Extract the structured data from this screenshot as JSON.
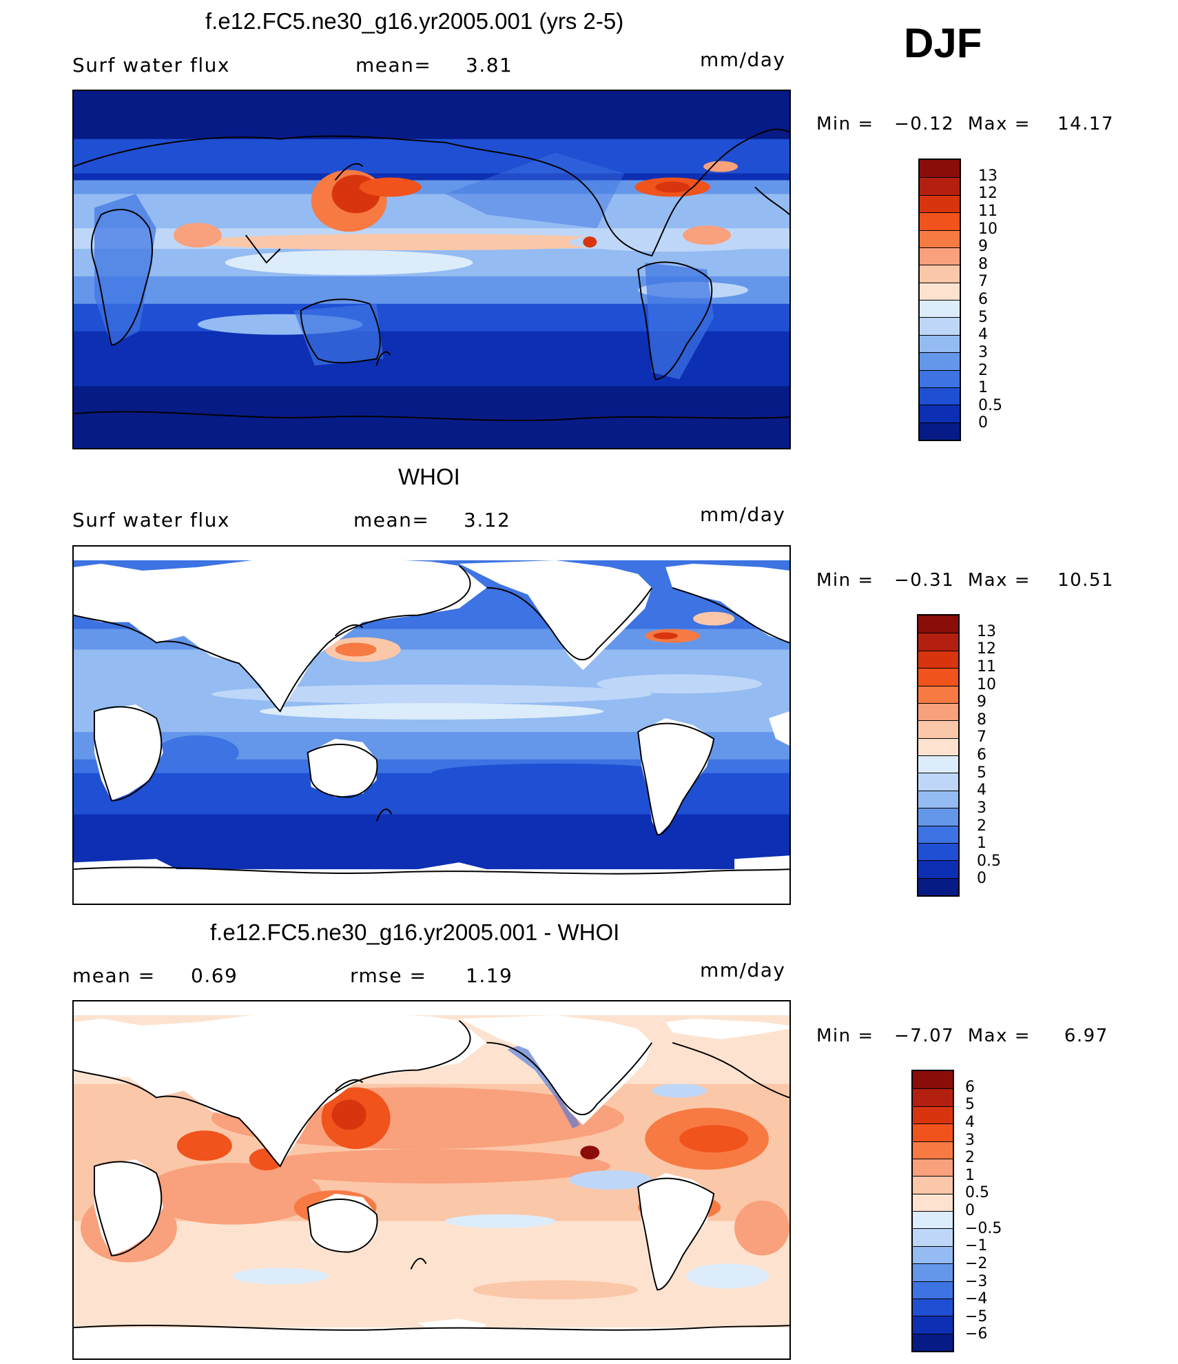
{
  "season": "DJF",
  "units": "mm/day",
  "panels": [
    {
      "title": "f.e12.FC5.ne30_g16.yr2005.001 (yrs 2-5)",
      "left_label": "Surf water flux",
      "stat1": "mean=",
      "stat1_value": "3.81",
      "stat2": "",
      "stat2_value": "",
      "min_label": "Min =",
      "min_value": "−0.12",
      "max_label": "Max =",
      "max_value": "14.17",
      "colorbar": {
        "levels": [
          "13",
          "12",
          "11",
          "10",
          "9",
          "8",
          "7",
          "6",
          "5",
          "4",
          "3",
          "2",
          "1",
          "0.5",
          "0"
        ],
        "colors": [
          "#8b0d0a",
          "#b4200f",
          "#d8350f",
          "#f0531b",
          "#f77a43",
          "#f9a07c",
          "#fbc7a9",
          "#fde3cf",
          "#dcecfb",
          "#bed7f8",
          "#94bbf2",
          "#6497ea",
          "#3d73e2",
          "#1f4fd3",
          "#0d2fb3",
          "#061b86"
        ]
      }
    },
    {
      "title": "WHOI",
      "left_label": "Surf water flux",
      "stat1": "mean=",
      "stat1_value": "3.12",
      "stat2": "",
      "stat2_value": "",
      "min_label": "Min =",
      "min_value": "−0.31",
      "max_label": "Max =",
      "max_value": "10.51",
      "colorbar": {
        "levels": [
          "13",
          "12",
          "11",
          "10",
          "9",
          "8",
          "7",
          "6",
          "5",
          "4",
          "3",
          "2",
          "1",
          "0.5",
          "0"
        ],
        "colors": [
          "#8b0d0a",
          "#b4200f",
          "#d8350f",
          "#f0531b",
          "#f77a43",
          "#f9a07c",
          "#fbc7a9",
          "#fde3cf",
          "#dcecfb",
          "#bed7f8",
          "#94bbf2",
          "#6497ea",
          "#3d73e2",
          "#1f4fd3",
          "#0d2fb3",
          "#061b86"
        ]
      }
    },
    {
      "title": "f.e12.FC5.ne30_g16.yr2005.001 - WHOI",
      "left_label": "mean =",
      "stat1": "0.69",
      "stat1_value": "",
      "stat2": "rmse =",
      "stat2_value": "1.19",
      "min_label": "Min =",
      "min_value": "−7.07",
      "max_label": "Max =",
      "max_value": "6.97",
      "colorbar": {
        "levels": [
          "6",
          "5",
          "4",
          "3",
          "2",
          "1",
          "0.5",
          "0",
          "−0.5",
          "−1",
          "−2",
          "−3",
          "−4",
          "−5",
          "−6"
        ],
        "colors": [
          "#8b0d0a",
          "#b4200f",
          "#d8350f",
          "#f0531b",
          "#f77a43",
          "#f9a07c",
          "#fbc7a9",
          "#fde3cf",
          "#dcecfb",
          "#bed7f8",
          "#94bbf2",
          "#6497ea",
          "#3d73e2",
          "#1f4fd3",
          "#0d2fb3",
          "#061b86"
        ]
      }
    }
  ]
}
